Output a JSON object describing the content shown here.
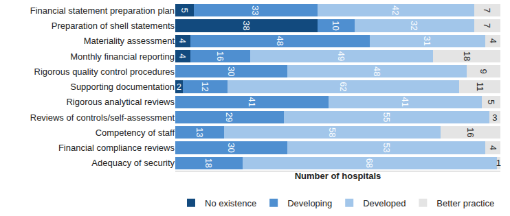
{
  "chart_data": {
    "type": "bar",
    "orientation": "horizontal",
    "stacked": true,
    "data_labels": true,
    "tick_labels": "y",
    "legend": "bottom",
    "grid": false,
    "xlabel": "Number of hospitals",
    "xlim": [
      0,
      87
    ],
    "categories": [
      "Financial statement preparation plan",
      "Preparation of shell statements",
      "Materiality assessment",
      "Monthly financial reporting",
      "Rigorous quality control procedures",
      "Supporting documentation",
      "Rigorous analytical reviews",
      "Reviews of controls/self-assessment",
      "Competency of staff",
      "Financial compliance reviews",
      "Adequacy of security"
    ],
    "series": [
      {
        "name": "No existence",
        "color": "#124a7e",
        "values": [
          5,
          38,
          4,
          4,
          null,
          2,
          null,
          null,
          null,
          null,
          null
        ]
      },
      {
        "name": "Developing",
        "color": "#4f8fd0",
        "values": [
          33,
          10,
          48,
          16,
          30,
          12,
          41,
          29,
          13,
          30,
          18
        ]
      },
      {
        "name": "Developed",
        "color": "#a2c6ea",
        "values": [
          42,
          32,
          31,
          49,
          48,
          62,
          41,
          55,
          58,
          53,
          68
        ]
      },
      {
        "name": "Better practice",
        "color": "#e4e4e4",
        "values": [
          7,
          7,
          4,
          18,
          9,
          11,
          5,
          3,
          16,
          4,
          1
        ]
      }
    ]
  }
}
